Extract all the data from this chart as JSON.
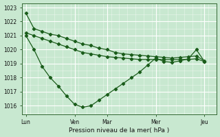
{
  "xlabel": "Pression niveau de la mer( hPa )",
  "bg_color": "#c8e8d0",
  "grid_color": "#ffffff",
  "line_color": "#1a5c1a",
  "ylim": [
    1015.4,
    1023.3
  ],
  "yticks": [
    1016,
    1017,
    1018,
    1019,
    1020,
    1021,
    1022,
    1023
  ],
  "xlim": [
    0,
    48
  ],
  "day_positions": [
    1,
    13,
    21,
    33,
    45
  ],
  "day_labels": [
    "Lun",
    "Ven",
    "Mar",
    "Mer",
    "Jeu"
  ],
  "series1_x": [
    1,
    3,
    5,
    7,
    9,
    11,
    13,
    15,
    17,
    19,
    21,
    23,
    25,
    27,
    29,
    31,
    33,
    35,
    37,
    39,
    41,
    43,
    45
  ],
  "series1_y": [
    1022.6,
    1021.5,
    1021.3,
    1021.1,
    1021.0,
    1020.8,
    1020.6,
    1020.4,
    1020.3,
    1020.1,
    1020.0,
    1019.8,
    1019.7,
    1019.65,
    1019.6,
    1019.55,
    1019.5,
    1019.45,
    1019.4,
    1019.45,
    1019.5,
    1019.55,
    1019.2
  ],
  "series2_x": [
    1,
    3,
    5,
    7,
    9,
    11,
    13,
    15,
    17,
    19,
    21,
    23,
    25,
    27,
    29,
    31,
    33,
    35,
    37,
    39,
    41,
    43,
    45
  ],
  "series2_y": [
    1021.2,
    1021.0,
    1020.8,
    1020.6,
    1020.4,
    1020.2,
    1020.0,
    1019.8,
    1019.7,
    1019.6,
    1019.5,
    1019.45,
    1019.4,
    1019.35,
    1019.3,
    1019.3,
    1019.3,
    1019.3,
    1019.3,
    1019.3,
    1019.3,
    1019.35,
    1019.15
  ],
  "series3_x": [
    1,
    3,
    5,
    7,
    9,
    11,
    13,
    15,
    17,
    19,
    21,
    23,
    25,
    27,
    29,
    31,
    33,
    35,
    37,
    39,
    41,
    43,
    45
  ],
  "series3_y": [
    1021.0,
    1020.0,
    1018.8,
    1018.0,
    1017.4,
    1016.7,
    1016.1,
    1015.9,
    1016.0,
    1016.4,
    1016.8,
    1017.2,
    1017.6,
    1018.0,
    1018.4,
    1018.9,
    1019.4,
    1019.15,
    1019.1,
    1019.2,
    1019.35,
    1020.0,
    1019.15
  ]
}
